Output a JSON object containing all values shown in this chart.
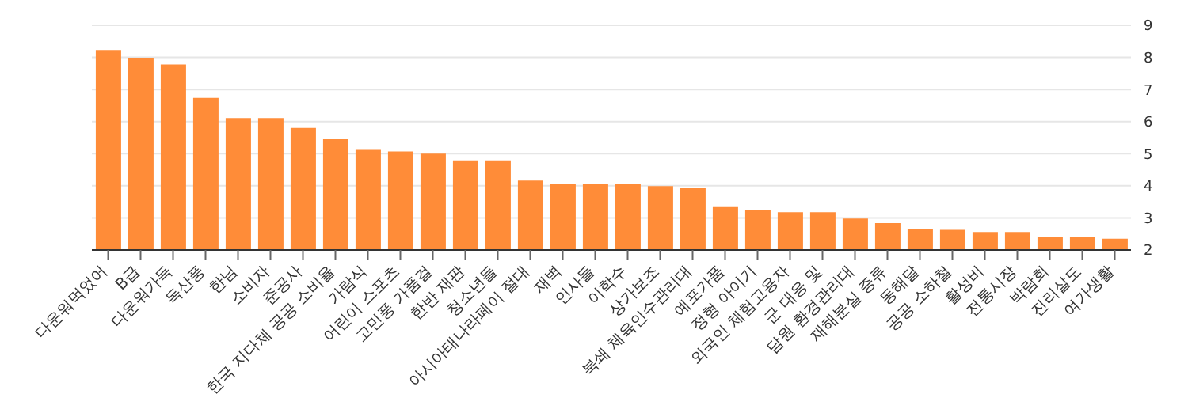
{
  "chart_data": {
    "type": "bar",
    "categories": [
      "다운워먹었어",
      "B급",
      "다운워가득",
      "독산풍",
      "한님",
      "소비자",
      "준공사",
      "한국 지다체 공공 소비율",
      "가람식",
      "어린이 스포츠",
      "고민풍 가품걸",
      "한반 재판",
      "청소년들",
      "아시아태나라페이 절대",
      "재벽",
      "인사들",
      "이학수",
      "상가보조",
      "북쇄 체육인수관리대",
      "예포가품",
      "정형 아이기",
      "외국인 체험고용자",
      "군 대응 및",
      "담원 환경관리대",
      "재해분실 증류",
      "동해달",
      "공공 소하철",
      "활성비",
      "전통시장",
      "박람회",
      "진리살도",
      "여가생활"
    ],
    "values": [
      8.23,
      7.99,
      7.78,
      6.74,
      6.11,
      6.11,
      5.8,
      5.45,
      5.14,
      5.07,
      5.0,
      4.79,
      4.79,
      4.16,
      4.06,
      4.06,
      4.06,
      3.99,
      3.92,
      3.36,
      3.25,
      3.18,
      3.18,
      2.98,
      2.84,
      2.66,
      2.63,
      2.56,
      2.56,
      2.42,
      2.42,
      2.35
    ],
    "color": "#ff8c38",
    "ylim": [
      2,
      9
    ],
    "yticks": [
      2,
      3,
      4,
      5,
      6,
      7,
      8,
      9
    ],
    "grid": "y"
  }
}
